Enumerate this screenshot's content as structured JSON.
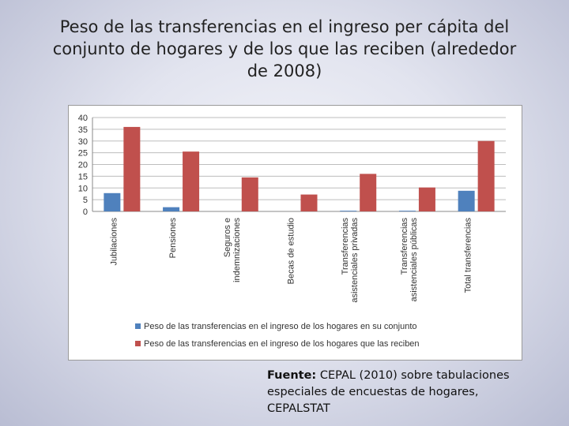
{
  "slide": {
    "title_line1": "Peso de las transferencias en el ingreso per cápita del",
    "title_line2": "conjunto de hogares y de los que las reciben (alrededor",
    "title_line3": "de 2008)",
    "source_label": "Fuente:",
    "source_line1": "CEPAL (2010) sobre tabulaciones",
    "source_line2": "especiales de encuestas de hogares,",
    "source_line3": "CEPALSTAT"
  },
  "colors": {
    "series1": "#4f81bd",
    "series2": "#c0504d",
    "grid": "#bdbdbd",
    "axis_text": "#333333"
  },
  "chart_data": {
    "type": "bar",
    "categories": [
      [
        "Jubilaciones"
      ],
      [
        "Pensiones"
      ],
      [
        "Seguros e",
        "indemnizaciones"
      ],
      [
        "Becas de estudio"
      ],
      [
        "Transferencias",
        "asistenciales privadas"
      ],
      [
        "Transferencias",
        "asistenciales públicas"
      ],
      [
        "Total transferencias"
      ]
    ],
    "series": [
      {
        "name": "Peso de las transferencias en el ingreso de los hogares en su conjunto",
        "values": [
          7.8,
          1.8,
          0,
          0,
          0.3,
          0.3,
          8.8
        ]
      },
      {
        "name": "Peso de las transferencias en el ingreso de los hogares que las reciben",
        "values": [
          36,
          25.5,
          14.5,
          7.2,
          16,
          10.2,
          30
        ]
      }
    ],
    "ylim": [
      0,
      40
    ],
    "yticks": [
      0,
      5,
      10,
      15,
      20,
      25,
      30,
      35,
      40
    ],
    "grid": true,
    "legend": "bottom",
    "title": "",
    "xlabel": "",
    "ylabel": ""
  }
}
